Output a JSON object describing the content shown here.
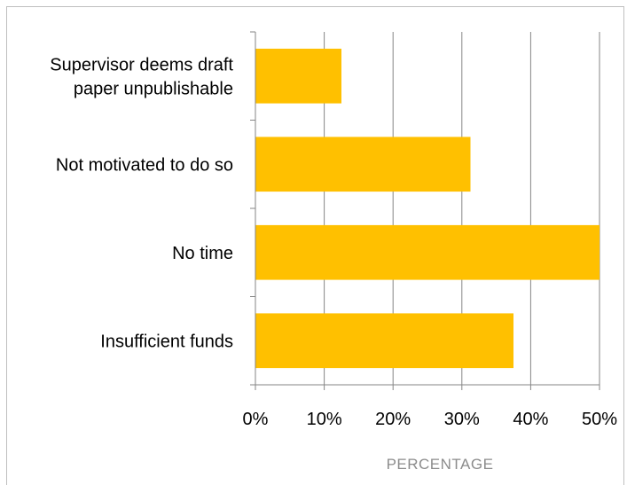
{
  "chart_data": {
    "type": "bar",
    "orientation": "horizontal",
    "categories": [
      "Supervisor deems draft paper unpublishable",
      "Not motivated to do so",
      "No time",
      "Insufficient funds"
    ],
    "category_lines": [
      [
        "Supervisor deems draft",
        "paper unpublishable"
      ],
      [
        "Not motivated to do so"
      ],
      [
        "No time"
      ],
      [
        "Insufficient funds"
      ]
    ],
    "values": [
      12.5,
      31.25,
      50,
      37.5
    ],
    "xlabel": "PERCENTAGE",
    "ylabel": "",
    "xlim": [
      0,
      50
    ],
    "xticks": [
      0,
      10,
      20,
      30,
      40,
      50
    ],
    "xtick_labels": [
      "0%",
      "10%",
      "20%",
      "30%",
      "40%",
      "50%"
    ],
    "grid": "vertical",
    "legend": "none",
    "bar_color": "#ffc000",
    "gridline_color": "#868686"
  }
}
